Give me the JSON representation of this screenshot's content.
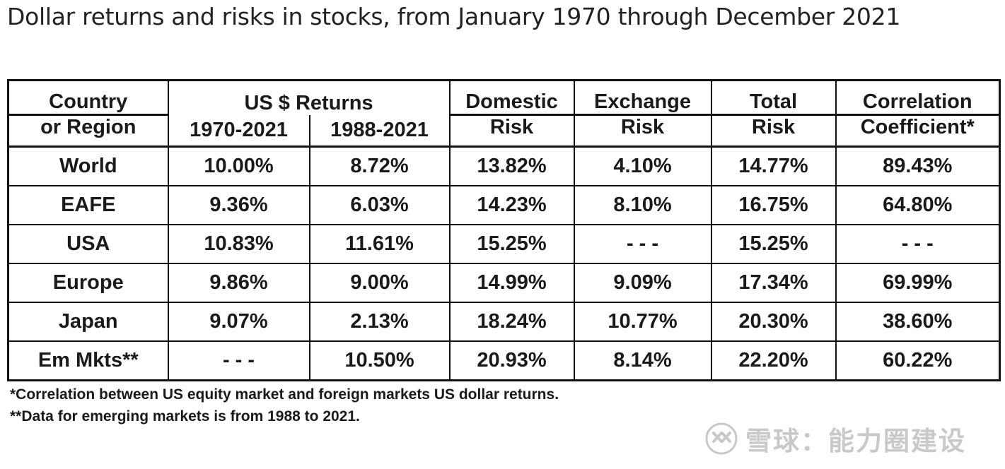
{
  "title": "Dollar returns and risks in stocks, from January 1970 through December 2021",
  "chart_data": {
    "type": "table",
    "title": "Dollar returns and risks in stocks, from January 1970 through December 2021",
    "headers": {
      "country_line1": "Country",
      "country_line2": "or Region",
      "returns_group": "US $ Returns",
      "returns_1970": "1970-2021",
      "returns_1988": "1988-2021",
      "domestic_line1": "Domestic",
      "domestic_line2": "Risk",
      "exchange_line1": "Exchange",
      "exchange_line2": "Risk",
      "total_line1": "Total",
      "total_line2": "Risk",
      "corr_line1": "Correlation",
      "corr_line2": "Coefficient*"
    },
    "rows": [
      [
        "World",
        "10.00%",
        "8.72%",
        "13.82%",
        "4.10%",
        "14.77%",
        "89.43%"
      ],
      [
        "EAFE",
        "9.36%",
        "6.03%",
        "14.23%",
        "8.10%",
        "16.75%",
        "64.80%"
      ],
      [
        "USA",
        "10.83%",
        "11.61%",
        "15.25%",
        "- - -",
        "15.25%",
        "- - -"
      ],
      [
        "Europe",
        "9.86%",
        "9.00%",
        "14.99%",
        "9.09%",
        "17.34%",
        "69.99%"
      ],
      [
        "Japan",
        "9.07%",
        "2.13%",
        "18.24%",
        "10.77%",
        "20.30%",
        "38.60%"
      ],
      [
        "Em Mkts**",
        "- - -",
        "10.50%",
        "20.93%",
        "8.14%",
        "22.20%",
        "60.22%"
      ]
    ]
  },
  "footnotes": {
    "note1": "*Correlation between US equity market and foreign markets US dollar returns.",
    "note2": "**Data for emerging markets is from 1988 to 2021."
  },
  "watermark": {
    "text": "雪球：能力圈建设"
  }
}
